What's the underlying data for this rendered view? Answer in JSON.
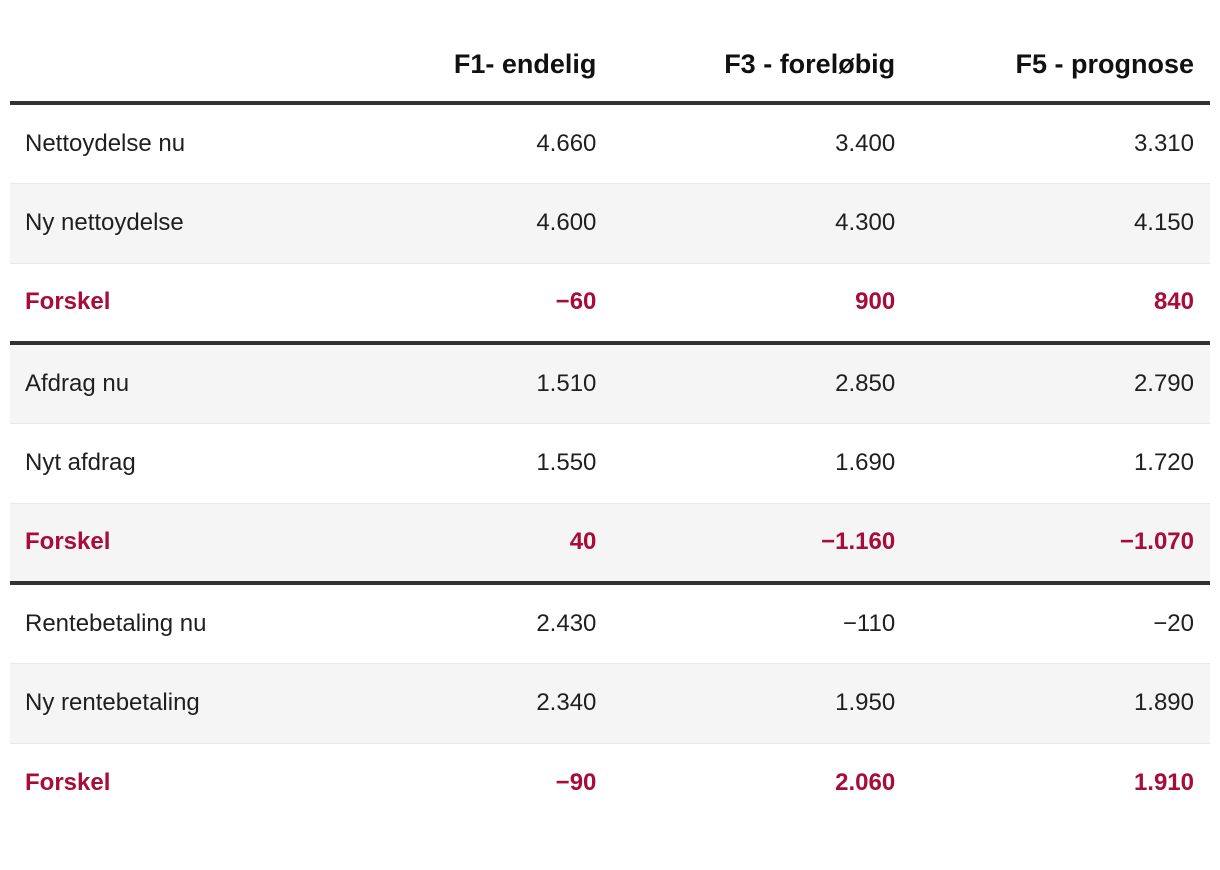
{
  "chart_data": {
    "type": "table",
    "title": "",
    "columns": [
      "",
      "F1- endelig",
      "F3 - foreløbig",
      "F5 - prognose"
    ],
    "rows": [
      {
        "label": "Nettoydelse nu",
        "values": [
          "4.660",
          "3.400",
          "3.310"
        ],
        "values_numeric": [
          4660,
          3400,
          3310
        ],
        "type": "normal",
        "shaded": false,
        "group_end": false
      },
      {
        "label": "Ny nettoydelse",
        "values": [
          "4.600",
          "4.300",
          "4.150"
        ],
        "values_numeric": [
          4600,
          4300,
          4150
        ],
        "type": "normal",
        "shaded": true,
        "group_end": false
      },
      {
        "label": "Forskel",
        "values": [
          "−60",
          "900",
          "840"
        ],
        "values_numeric": [
          -60,
          900,
          840
        ],
        "type": "forskel",
        "shaded": false,
        "group_end": true
      },
      {
        "label": "Afdrag nu",
        "values": [
          "1.510",
          "2.850",
          "2.790"
        ],
        "values_numeric": [
          1510,
          2850,
          2790
        ],
        "type": "normal",
        "shaded": true,
        "group_end": false
      },
      {
        "label": "Nyt afdrag",
        "values": [
          "1.550",
          "1.690",
          "1.720"
        ],
        "values_numeric": [
          1550,
          1690,
          1720
        ],
        "type": "normal",
        "shaded": false,
        "group_end": false
      },
      {
        "label": "Forskel",
        "values": [
          "40",
          "−1.160",
          "−1.070"
        ],
        "values_numeric": [
          40,
          -1160,
          -1070
        ],
        "type": "forskel",
        "shaded": true,
        "group_end": true
      },
      {
        "label": "Rentebetaling nu",
        "values": [
          "2.430",
          "−110",
          "−20"
        ],
        "values_numeric": [
          2430,
          -110,
          -20
        ],
        "type": "normal",
        "shaded": false,
        "group_end": false
      },
      {
        "label": "Ny rentebetaling",
        "values": [
          "2.340",
          "1.950",
          "1.890"
        ],
        "values_numeric": [
          2340,
          1950,
          1890
        ],
        "type": "normal",
        "shaded": true,
        "group_end": false
      },
      {
        "label": "Forskel",
        "values": [
          "−90",
          "2.060",
          "1.910"
        ],
        "values_numeric": [
          -90,
          2060,
          1910
        ],
        "type": "forskel",
        "shaded": false,
        "group_end": false
      }
    ],
    "layout": {
      "number_alignment": "right",
      "label_alignment": "left",
      "striped": true,
      "group_separators_after_rows": [
        2,
        5
      ]
    },
    "colors": {
      "accent_red": "#a70d3a",
      "dark_border": "#323232",
      "row_shade": "#f5f5f5",
      "row_divider": "#e8e8e8",
      "text": "#1f1f1f"
    }
  }
}
